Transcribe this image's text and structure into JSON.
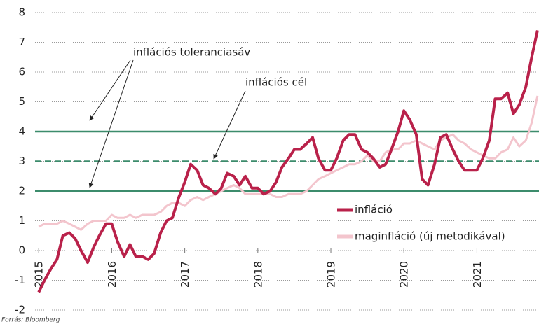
{
  "chart_data": {
    "type": "line",
    "annotations": [
      "inflációs toleranciasáv",
      "inflációs cél"
    ],
    "source": "Forrás: Bloomberg",
    "target": 3,
    "tolerance": [
      2,
      4
    ],
    "reference_color": "#3c8c6c",
    "grid": true,
    "xlim": [
      2014.95,
      2021.85
    ],
    "xticks": [
      2015,
      2016,
      2017,
      2018,
      2019,
      2020,
      2021
    ],
    "ylim": [
      -2,
      8
    ],
    "yticks": [
      -2,
      -1,
      0,
      1,
      2,
      3,
      4,
      5,
      6,
      7,
      8
    ],
    "legend": "bottom-right",
    "x": [
      2015.0,
      2015.08,
      2015.17,
      2015.25,
      2015.33,
      2015.42,
      2015.5,
      2015.58,
      2015.67,
      2015.75,
      2015.83,
      2015.92,
      2016.0,
      2016.08,
      2016.17,
      2016.25,
      2016.33,
      2016.42,
      2016.5,
      2016.58,
      2016.67,
      2016.75,
      2016.83,
      2016.92,
      2017.0,
      2017.08,
      2017.17,
      2017.25,
      2017.33,
      2017.42,
      2017.5,
      2017.58,
      2017.67,
      2017.75,
      2017.83,
      2017.92,
      2018.0,
      2018.08,
      2018.17,
      2018.25,
      2018.33,
      2018.42,
      2018.5,
      2018.58,
      2018.67,
      2018.75,
      2018.83,
      2018.92,
      2019.0,
      2019.08,
      2019.17,
      2019.25,
      2019.33,
      2019.42,
      2019.5,
      2019.58,
      2019.67,
      2019.75,
      2019.83,
      2019.92,
      2020.0,
      2020.08,
      2020.17,
      2020.25,
      2020.33,
      2020.42,
      2020.5,
      2020.58,
      2020.67,
      2020.75,
      2020.83,
      2020.92,
      2021.0,
      2021.08,
      2021.17,
      2021.25,
      2021.33,
      2021.42,
      2021.5,
      2021.58,
      2021.67,
      2021.75,
      2021.83
    ],
    "series": [
      {
        "name": "maginfláció (új metodikával)",
        "color": "#f3c5cd",
        "width": 3,
        "values": [
          0.8,
          0.9,
          0.9,
          0.9,
          1.0,
          0.9,
          0.8,
          0.7,
          0.9,
          1.0,
          1.0,
          1.0,
          1.2,
          1.1,
          1.1,
          1.2,
          1.1,
          1.2,
          1.2,
          1.2,
          1.3,
          1.5,
          1.6,
          1.6,
          1.5,
          1.7,
          1.8,
          1.7,
          1.8,
          1.9,
          2.0,
          2.1,
          2.2,
          2.1,
          1.9,
          1.9,
          1.9,
          1.9,
          1.9,
          1.8,
          1.8,
          1.9,
          1.9,
          1.9,
          2.0,
          2.2,
          2.4,
          2.5,
          2.6,
          2.7,
          2.8,
          2.9,
          2.9,
          3.0,
          3.2,
          3.0,
          3.0,
          3.3,
          3.4,
          3.4,
          3.6,
          3.6,
          3.7,
          3.6,
          3.5,
          3.4,
          3.7,
          3.8,
          3.9,
          3.7,
          3.6,
          3.4,
          3.3,
          3.2,
          3.1,
          3.1,
          3.3,
          3.4,
          3.8,
          3.5,
          3.7,
          4.3,
          5.2
        ]
      },
      {
        "name": "infláció",
        "color": "#b9214a",
        "width": 4,
        "values": [
          -1.4,
          -1.0,
          -0.6,
          -0.3,
          0.5,
          0.6,
          0.4,
          0.0,
          -0.4,
          0.1,
          0.5,
          0.9,
          0.9,
          0.3,
          -0.2,
          0.2,
          -0.2,
          -0.2,
          -0.3,
          -0.1,
          0.6,
          1.0,
          1.1,
          1.8,
          2.3,
          2.9,
          2.7,
          2.2,
          2.1,
          1.9,
          2.1,
          2.6,
          2.5,
          2.2,
          2.5,
          2.1,
          2.1,
          1.9,
          2.0,
          2.3,
          2.8,
          3.1,
          3.4,
          3.4,
          3.6,
          3.8,
          3.1,
          2.7,
          2.7,
          3.1,
          3.7,
          3.9,
          3.9,
          3.4,
          3.3,
          3.1,
          2.8,
          2.9,
          3.4,
          4.0,
          4.7,
          4.4,
          3.9,
          2.4,
          2.2,
          2.9,
          3.8,
          3.9,
          3.4,
          3.0,
          2.7,
          2.7,
          2.7,
          3.1,
          3.7,
          5.1,
          5.1,
          5.3,
          4.6,
          4.9,
          5.5,
          6.5,
          7.4
        ]
      }
    ]
  }
}
